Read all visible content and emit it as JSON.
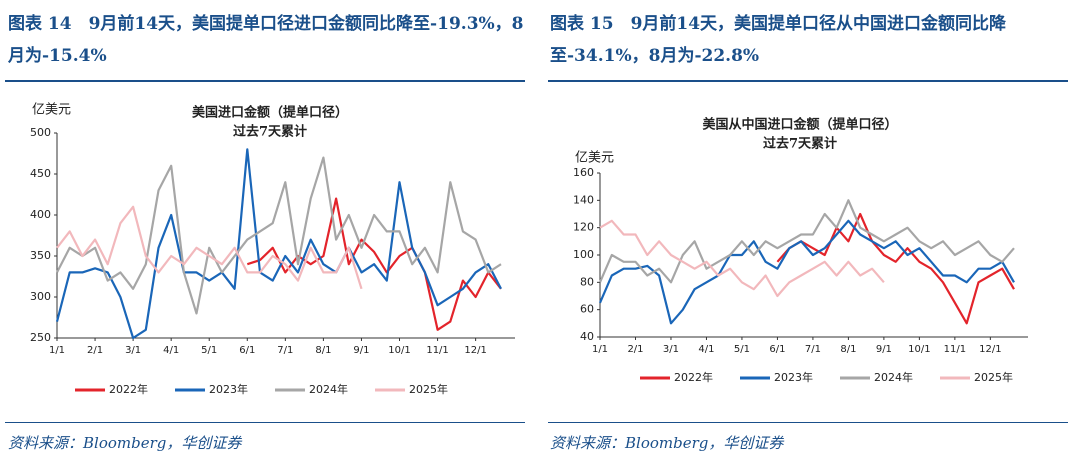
{
  "chart_data": [
    {
      "type": "line",
      "figure_title": "图表 14　9月前14天，美国提单口径进口金额同比降至-19.3%，8月为-15.4%",
      "title": "美国进口金额（提单口径）",
      "subtitle": "过去7天累计",
      "y_label": "亿美元",
      "source": "资料来源：Bloomberg，华创证券",
      "categories": [
        "1/1",
        null,
        null,
        "2/1",
        null,
        null,
        "3/1",
        null,
        null,
        "4/1",
        null,
        null,
        "5/1",
        null,
        null,
        "6/1",
        null,
        null,
        "7/1",
        null,
        null,
        "8/1",
        null,
        null,
        "9/1",
        null,
        null,
        "10/1",
        null,
        null,
        "11/1",
        null,
        null,
        "12/1",
        null,
        null
      ],
      "ylim": [
        250,
        500
      ],
      "yticks": [
        250,
        300,
        350,
        400,
        450,
        500
      ],
      "legend": "bottom",
      "series": [
        {
          "name": "2022年",
          "color": "#e3242b",
          "values": [
            null,
            null,
            null,
            null,
            null,
            null,
            null,
            null,
            null,
            null,
            null,
            null,
            null,
            null,
            null,
            340,
            345,
            360,
            330,
            350,
            340,
            350,
            420,
            340,
            370,
            355,
            330,
            350,
            360,
            330,
            260,
            270,
            320,
            300,
            330,
            310
          ]
        },
        {
          "name": "2023年",
          "color": "#1a66b8",
          "values": [
            270,
            330,
            330,
            335,
            330,
            300,
            250,
            260,
            360,
            400,
            330,
            330,
            320,
            330,
            310,
            480,
            330,
            320,
            350,
            330,
            370,
            340,
            330,
            360,
            330,
            340,
            320,
            440,
            360,
            330,
            290,
            300,
            310,
            330,
            340,
            310
          ]
        },
        {
          "name": "2024年",
          "color": "#a6a6a6",
          "values": [
            330,
            360,
            350,
            360,
            320,
            330,
            310,
            340,
            430,
            460,
            330,
            280,
            360,
            330,
            350,
            370,
            380,
            390,
            440,
            340,
            420,
            470,
            370,
            400,
            360,
            400,
            380,
            380,
            340,
            360,
            330,
            440,
            380,
            370,
            330,
            340
          ]
        },
        {
          "name": "2025年",
          "color": "#f2b8bc",
          "values": [
            360,
            380,
            350,
            370,
            340,
            390,
            410,
            350,
            330,
            350,
            340,
            360,
            350,
            340,
            360,
            330,
            330,
            350,
            340,
            320,
            360,
            330,
            330,
            360,
            310,
            null,
            null,
            null,
            null,
            null,
            null,
            null,
            null,
            null,
            null,
            null
          ]
        }
      ]
    },
    {
      "type": "line",
      "figure_title": "图表 15　9月前14天，美国提单口径从中国进口金额同比降至-34.1%，8月为-22.8%",
      "title": "美国从中国进口金额（提单口径）",
      "subtitle": "过去7天累计",
      "y_label": "亿美元",
      "source": "资料来源：Bloomberg，华创证券",
      "categories": [
        "1/1",
        null,
        null,
        "2/1",
        null,
        null,
        "3/1",
        null,
        null,
        "4/1",
        null,
        null,
        "5/1",
        null,
        null,
        "6/1",
        null,
        null,
        "7/1",
        null,
        null,
        "8/1",
        null,
        null,
        "9/1",
        null,
        null,
        "10/1",
        null,
        null,
        "11/1",
        null,
        null,
        "12/1",
        null,
        null
      ],
      "ylim": [
        40,
        160
      ],
      "yticks": [
        40,
        60,
        80,
        100,
        120,
        140,
        160
      ],
      "legend": "bottom",
      "series": [
        {
          "name": "2022年",
          "color": "#e3242b",
          "values": [
            null,
            null,
            null,
            null,
            null,
            null,
            null,
            null,
            null,
            null,
            null,
            null,
            null,
            null,
            null,
            95,
            105,
            110,
            105,
            100,
            120,
            110,
            130,
            110,
            100,
            95,
            105,
            95,
            90,
            80,
            65,
            50,
            80,
            85,
            90,
            75
          ]
        },
        {
          "name": "2023年",
          "color": "#1a66b8",
          "values": [
            65,
            85,
            90,
            90,
            92,
            85,
            50,
            60,
            75,
            80,
            85,
            100,
            100,
            110,
            95,
            90,
            105,
            110,
            100,
            105,
            115,
            125,
            115,
            110,
            105,
            110,
            100,
            105,
            95,
            85,
            85,
            80,
            90,
            90,
            95,
            80
          ]
        },
        {
          "name": "2024年",
          "color": "#a6a6a6",
          "values": [
            80,
            100,
            95,
            95,
            85,
            90,
            80,
            100,
            110,
            90,
            95,
            100,
            110,
            100,
            110,
            105,
            110,
            115,
            115,
            130,
            120,
            140,
            120,
            115,
            110,
            115,
            120,
            110,
            105,
            110,
            100,
            105,
            110,
            100,
            95,
            105
          ]
        },
        {
          "name": "2025年",
          "color": "#f2b8bc",
          "values": [
            120,
            125,
            115,
            115,
            100,
            110,
            100,
            95,
            90,
            95,
            85,
            90,
            80,
            75,
            85,
            70,
            80,
            85,
            90,
            95,
            85,
            95,
            85,
            90,
            80,
            null,
            null,
            null,
            null,
            null,
            null,
            null,
            null,
            null,
            null,
            null
          ]
        }
      ]
    }
  ]
}
